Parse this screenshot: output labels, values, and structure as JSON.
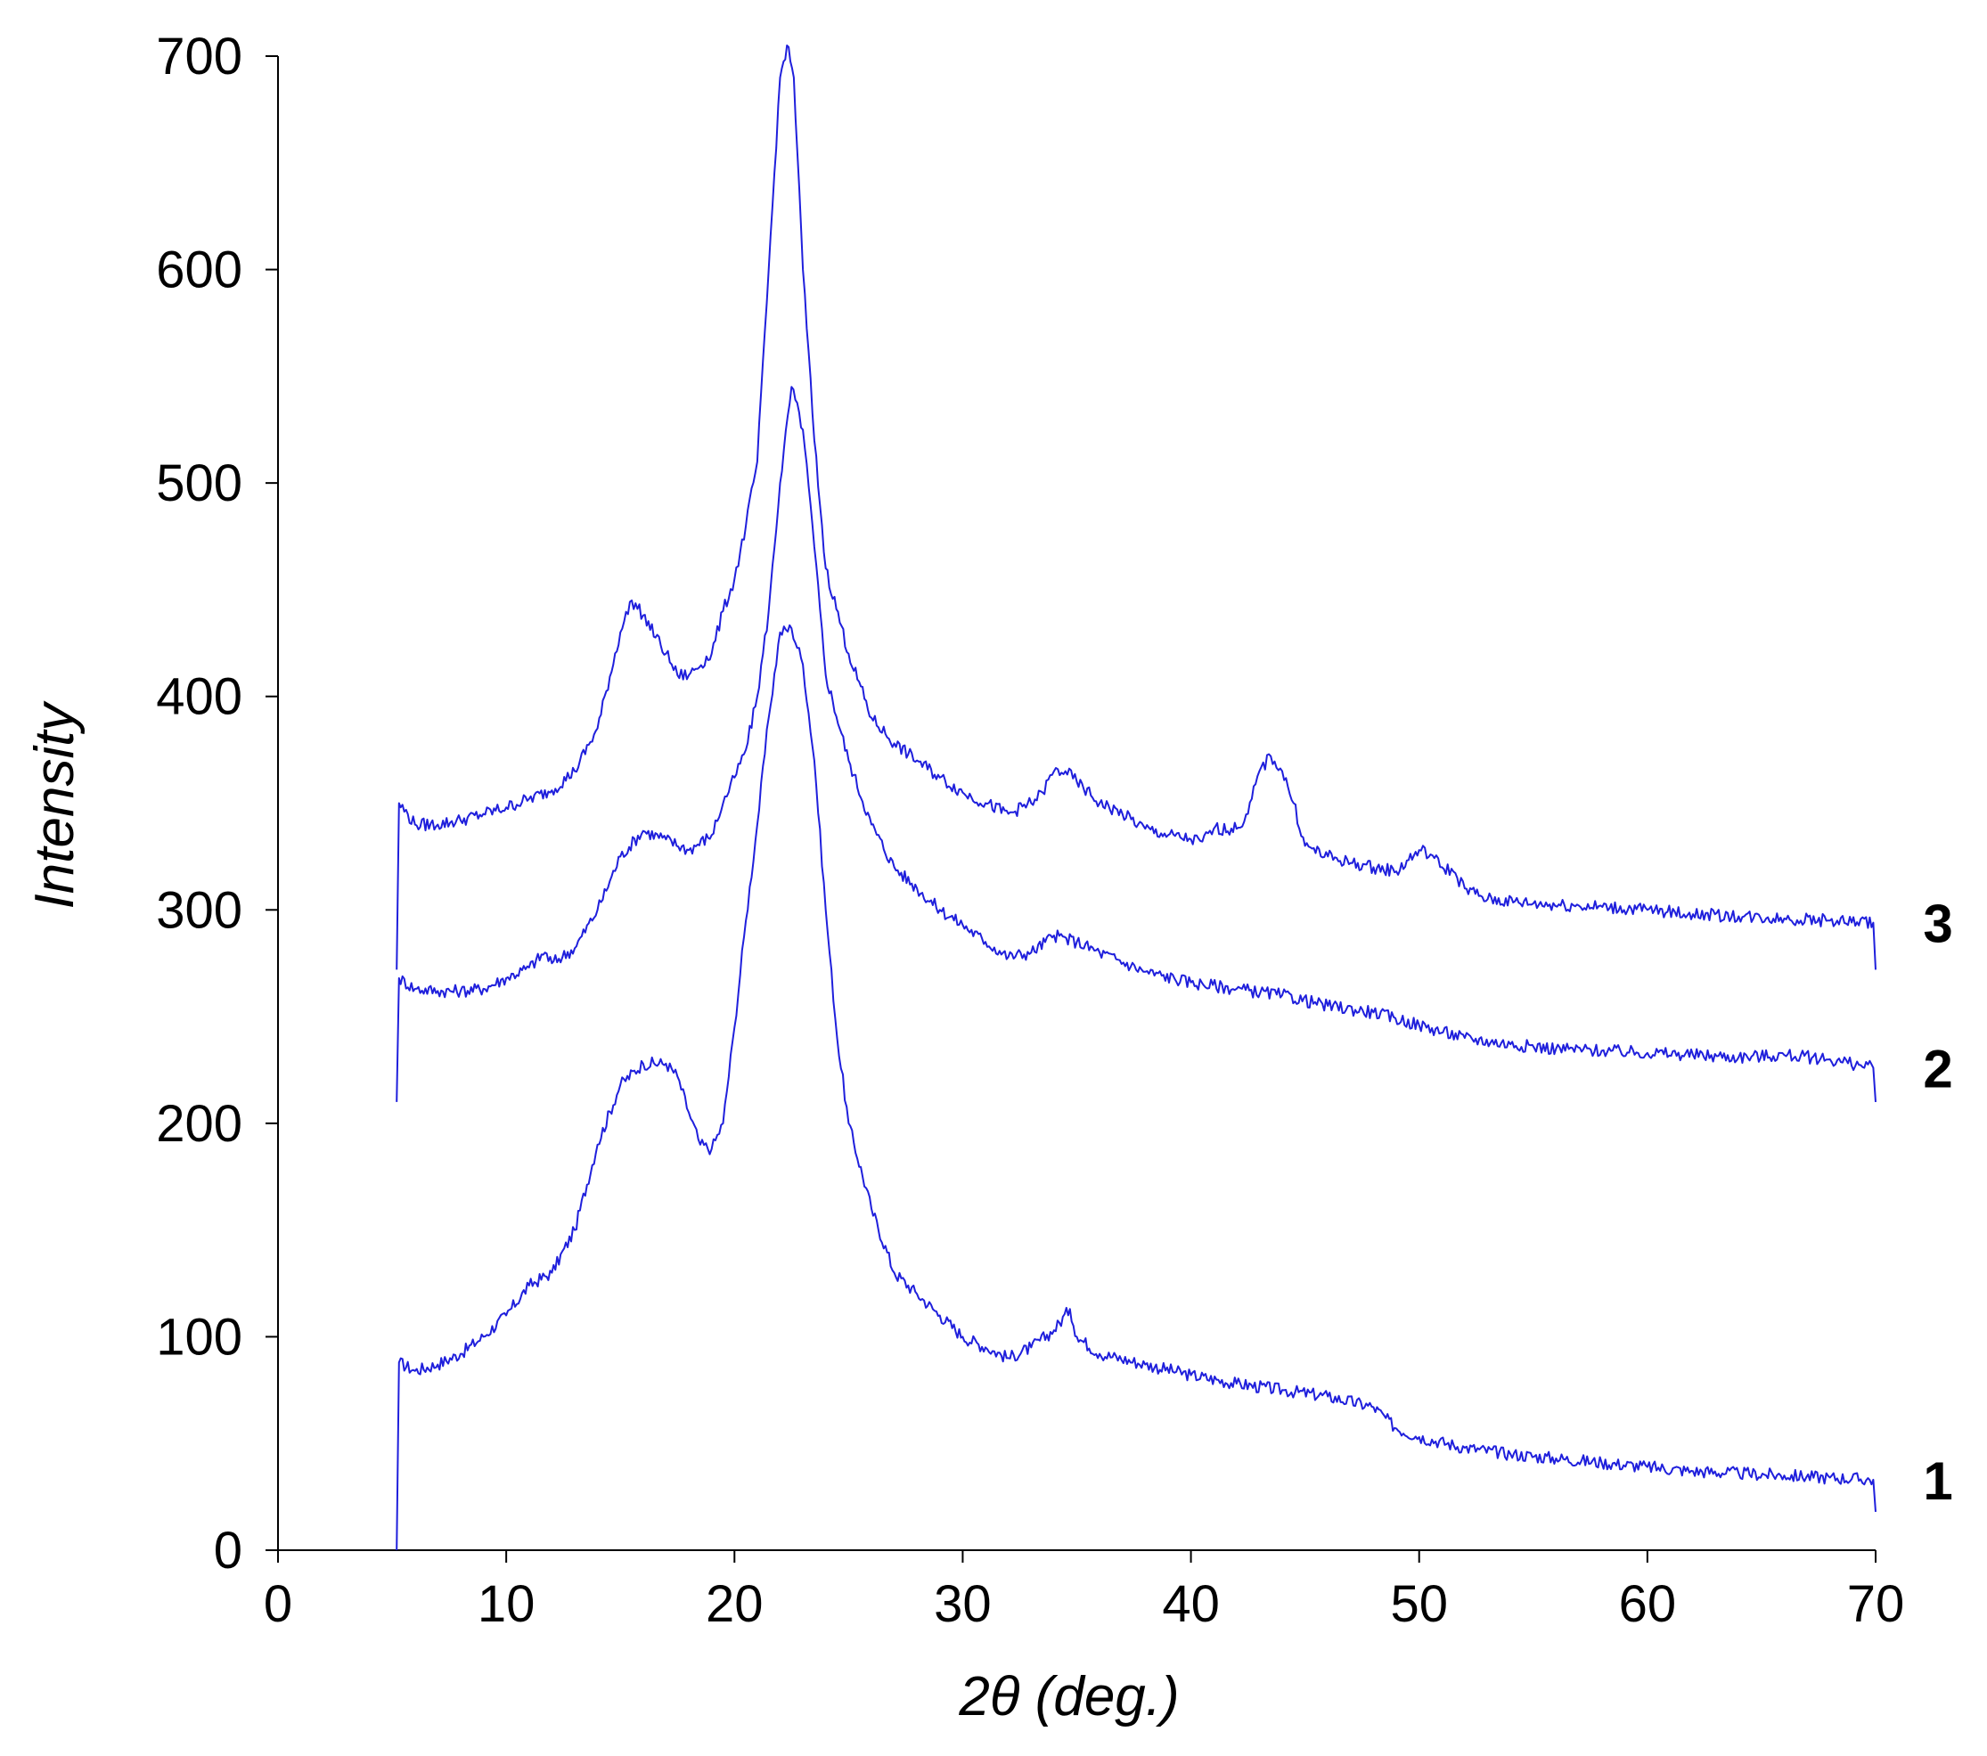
{
  "chart_data": {
    "type": "line",
    "title": "",
    "xlabel": "2θ (deg.)",
    "ylabel": "Intensity",
    "xlim": [
      0,
      70
    ],
    "ylim": [
      0,
      700
    ],
    "xticks": [
      0,
      10,
      20,
      30,
      40,
      50,
      60,
      70
    ],
    "yticks": [
      0,
      100,
      200,
      300,
      400,
      500,
      600,
      700
    ],
    "grid": false,
    "legend": "none",
    "line_color": "#1f1fdc",
    "series": [
      {
        "label": "1",
        "x": [
          5.2,
          5.3,
          6,
          7,
          8,
          9,
          10,
          11,
          12,
          13,
          14,
          15,
          16,
          17,
          17.5,
          18,
          18.5,
          19,
          19.5,
          20,
          20.5,
          21,
          21.5,
          22,
          22.5,
          23,
          23.5,
          24,
          24.5,
          25,
          26,
          27,
          28,
          29,
          30,
          31,
          32,
          33,
          34,
          34.7,
          35,
          36,
          38,
          40,
          42,
          44,
          46,
          48,
          49,
          50,
          52,
          54,
          56,
          58,
          60,
          62,
          64,
          66,
          68,
          69.9,
          70
        ],
        "y": [
          0,
          88,
          84,
          87,
          92,
          100,
          110,
          124,
          130,
          150,
          190,
          218,
          228,
          228,
          222,
          205,
          190,
          188,
          200,
          245,
          295,
          340,
          390,
          430,
          432,
          415,
          370,
          300,
          240,
          200,
          160,
          130,
          120,
          110,
          100,
          95,
          90,
          95,
          103,
          113,
          100,
          92,
          87,
          82,
          78,
          75,
          72,
          67,
          57,
          53,
          48,
          45,
          43,
          41,
          39,
          37,
          36,
          35,
          34,
          33,
          18
        ]
      },
      {
        "label": "2",
        "x": [
          5.2,
          5.3,
          6,
          7,
          8,
          9,
          10,
          11,
          11.7,
          12,
          13,
          14,
          15,
          16,
          17,
          18,
          19,
          19.5,
          20,
          20.5,
          21,
          21.5,
          22,
          22.5,
          23,
          23.5,
          24,
          25,
          26,
          27,
          28,
          29,
          30,
          31,
          32,
          33,
          34,
          35,
          36,
          38,
          40,
          42,
          44,
          46,
          48,
          50,
          52,
          54,
          56,
          58,
          60,
          62,
          64,
          66,
          68,
          69.9,
          70
        ],
        "y": [
          210,
          268,
          263,
          262,
          262,
          263,
          268,
          273,
          280,
          275,
          282,
          300,
          325,
          337,
          333,
          328,
          335,
          350,
          362,
          375,
          400,
          440,
          500,
          545,
          525,
          470,
          410,
          370,
          340,
          320,
          310,
          300,
          293,
          285,
          278,
          280,
          288,
          285,
          280,
          271,
          266,
          263,
          260,
          255,
          252,
          246,
          240,
          237,
          235,
          234,
          233,
          232,
          231,
          232,
          230,
          226,
          210
        ]
      },
      {
        "label": "3",
        "x": [
          5.2,
          5.3,
          6,
          7,
          8,
          9,
          10,
          11,
          12,
          13,
          14,
          15,
          15.5,
          16,
          17,
          17.5,
          18,
          19,
          19.5,
          20,
          20.5,
          21,
          21.5,
          22,
          22.3,
          22.6,
          23,
          23.5,
          24,
          25,
          26,
          27,
          28,
          29,
          30,
          31,
          32,
          33,
          33.5,
          34,
          34.5,
          35,
          36,
          37,
          38,
          39,
          40,
          40.5,
          41,
          42,
          42.5,
          43,
          43.5,
          44,
          44.5,
          45,
          46,
          47,
          48,
          49,
          50,
          50.5,
          51,
          51.5,
          52,
          53,
          55,
          57,
          60,
          62,
          64,
          66,
          68,
          69.9,
          70
        ],
        "y": [
          272,
          350,
          340,
          340,
          342,
          345,
          348,
          352,
          356,
          365,
          385,
          430,
          445,
          438,
          420,
          410,
          410,
          420,
          440,
          455,
          480,
          510,
          600,
          690,
          705,
          690,
          600,
          520,
          460,
          420,
          390,
          378,
          370,
          362,
          355,
          350,
          345,
          350,
          355,
          365,
          365,
          360,
          350,
          345,
          338,
          335,
          333,
          332,
          338,
          338,
          345,
          365,
          372,
          365,
          350,
          330,
          325,
          322,
          320,
          318,
          328,
          326,
          320,
          318,
          310,
          305,
          303,
          302,
          300,
          298,
          297,
          296,
          295,
          294,
          272
        ]
      }
    ]
  }
}
